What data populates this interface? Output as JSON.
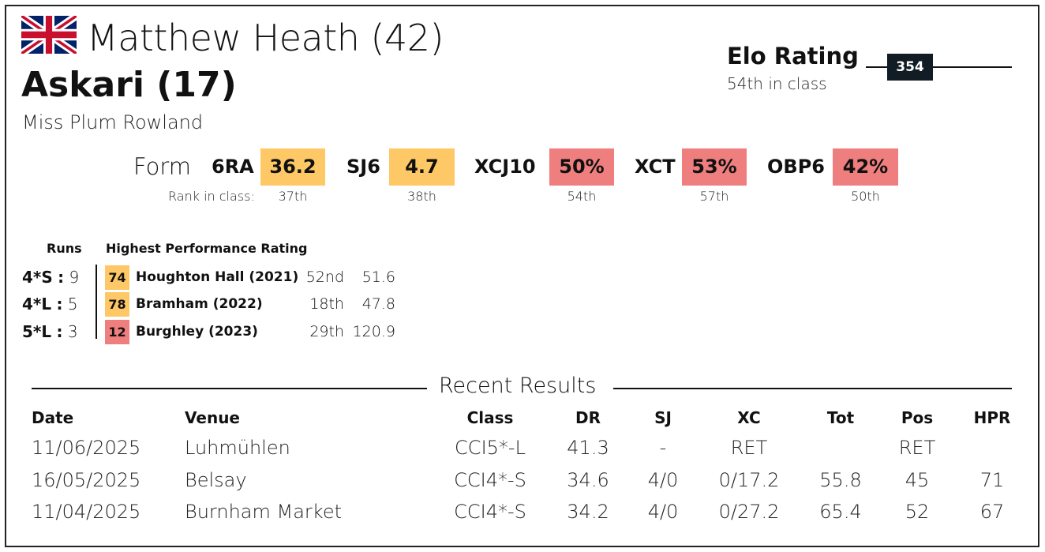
{
  "rider": {
    "name": "Matthew Heath (42)",
    "flag": "union-jack-icon"
  },
  "horse": {
    "name": "Askari (17)",
    "owner": "Miss Plum Rowland"
  },
  "elo": {
    "title": "Elo Rating",
    "class_rank": "54th in class",
    "value": "354"
  },
  "form": {
    "label": "Form",
    "rank_label": "Rank in class:",
    "metrics": [
      {
        "name": "6RA",
        "value": "36.2",
        "rank": "37th",
        "color": "#fdc865"
      },
      {
        "name": "SJ6",
        "value": "4.7",
        "rank": "38th",
        "color": "#fdc865"
      },
      {
        "name": "XCJ10",
        "value": "50%",
        "rank": "54th",
        "color": "#ef7e7e"
      },
      {
        "name": "XCT",
        "value": "53%",
        "rank": "57th",
        "color": "#ef7e7e"
      },
      {
        "name": "OBP6",
        "value": "42%",
        "rank": "50th",
        "color": "#ef7e7e"
      }
    ]
  },
  "hpr": {
    "runs_header": "Runs",
    "hpr_header": "Highest Performance Rating",
    "rows": [
      {
        "level": "4*S",
        "sep": ":",
        "runs": "9",
        "hpr": "74",
        "event": "Houghton Hall (2021)",
        "pos": "52nd",
        "score": "51.6",
        "color": "#fdc865"
      },
      {
        "level": "4*L",
        "sep": ":",
        "runs": "5",
        "hpr": "78",
        "event": "Bramham (2022)",
        "pos": "18th",
        "score": "47.8",
        "color": "#fdc865"
      },
      {
        "level": "5*L",
        "sep": ":",
        "runs": "3",
        "hpr": "12",
        "event": "Burghley (2023)",
        "pos": "29th",
        "score": "120.9",
        "color": "#ef7e7e"
      }
    ]
  },
  "recent": {
    "title": "Recent Results",
    "headers": {
      "date": "Date",
      "venue": "Venue",
      "class": "Class",
      "dr": "DR",
      "sj": "SJ",
      "xc": "XC",
      "tot": "Tot",
      "pos": "Pos",
      "hpr": "HPR"
    },
    "rows": [
      {
        "date": "11/06/2025",
        "venue": "Luhmühlen",
        "class": "CCI5*-L",
        "dr": "41.3",
        "sj": "-",
        "xc": "RET",
        "tot": "",
        "pos": "RET",
        "hpr": ""
      },
      {
        "date": "16/05/2025",
        "venue": "Belsay",
        "class": "CCI4*-S",
        "dr": "34.6",
        "sj": "4/0",
        "xc": "0/17.2",
        "tot": "55.8",
        "pos": "45",
        "hpr": "71"
      },
      {
        "date": "11/04/2025",
        "venue": "Burnham Market",
        "class": "CCI4*-S",
        "dr": "34.2",
        "sj": "4/0",
        "xc": "0/27.2",
        "tot": "65.4",
        "pos": "52",
        "hpr": "67"
      }
    ]
  }
}
